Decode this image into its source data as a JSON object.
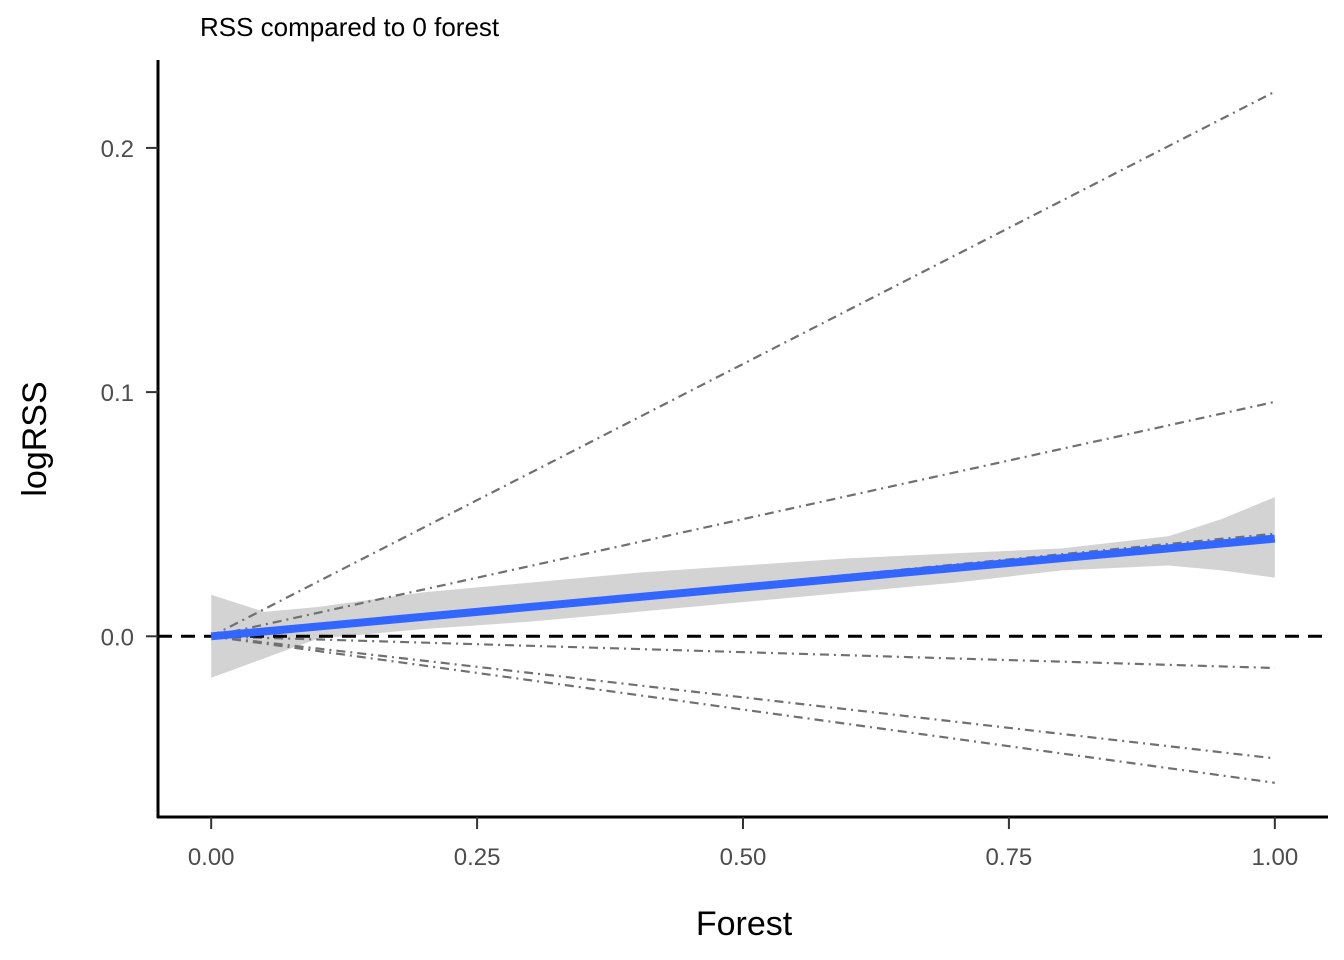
{
  "chart_data": {
    "type": "line",
    "title": "RSS compared to 0 forest",
    "xlabel": "Forest",
    "ylabel": "logRSS",
    "xlim": [
      -0.05,
      1.05
    ],
    "ylim": [
      -0.074,
      0.236
    ],
    "x_ticks": [
      0.0,
      0.25,
      0.5,
      0.75,
      1.0
    ],
    "x_tick_labels": [
      "0.00",
      "0.25",
      "0.50",
      "0.75",
      "1.00"
    ],
    "y_ticks": [
      0.0,
      0.1,
      0.2
    ],
    "y_tick_labels": [
      "0.0",
      "0.1",
      "0.2"
    ],
    "grid": false,
    "reference_line": {
      "y": 0.0,
      "style": "dashed",
      "color": "#000000"
    },
    "mean_line": {
      "color": "#3366ff",
      "x": [
        0.0,
        1.0
      ],
      "y": [
        0.0,
        0.04
      ]
    },
    "ribbon": {
      "color": "#d3d3d3",
      "x": [
        0.0,
        0.05,
        0.1,
        0.2,
        0.3,
        0.4,
        0.5,
        0.6,
        0.7,
        0.8,
        0.9,
        0.95,
        1.0
      ],
      "lower": [
        -0.017,
        -0.009,
        -0.001,
        0.003,
        0.006,
        0.01,
        0.014,
        0.018,
        0.022,
        0.027,
        0.029,
        0.027,
        0.024
      ],
      "upper": [
        0.017,
        0.01,
        0.012,
        0.018,
        0.022,
        0.026,
        0.029,
        0.032,
        0.034,
        0.036,
        0.041,
        0.048,
        0.057
      ]
    },
    "individual_lines": {
      "color": "#707070",
      "style": "dashdot",
      "series": [
        {
          "x": [
            0.0,
            1.0
          ],
          "y": [
            0.0,
            0.223
          ]
        },
        {
          "x": [
            0.0,
            1.0
          ],
          "y": [
            0.0,
            0.096
          ]
        },
        {
          "x": [
            0.0,
            1.0
          ],
          "y": [
            0.0,
            0.042
          ]
        },
        {
          "x": [
            0.0,
            1.0
          ],
          "y": [
            0.0,
            -0.013
          ]
        },
        {
          "x": [
            0.0,
            1.0
          ],
          "y": [
            0.0,
            -0.05
          ]
        },
        {
          "x": [
            0.0,
            1.0
          ],
          "y": [
            0.0,
            -0.06
          ]
        }
      ]
    }
  }
}
